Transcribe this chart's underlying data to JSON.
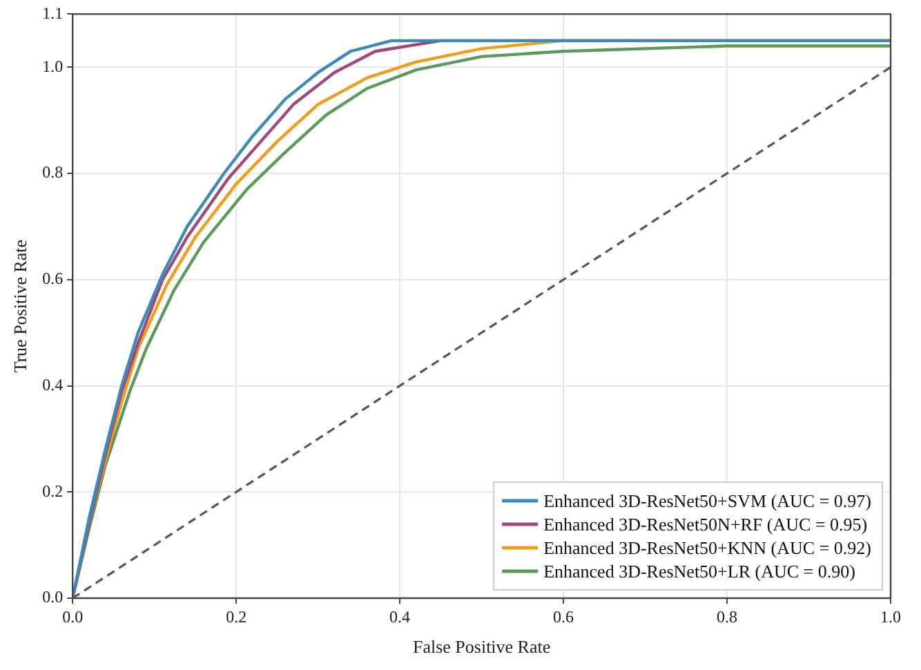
{
  "chart_data": {
    "type": "line",
    "xlabel": "False Positive Rate",
    "ylabel": "True Positive Rate",
    "xlim": [
      0,
      1
    ],
    "ylim": [
      0,
      1.1
    ],
    "xticks": [
      {
        "value": 0,
        "label": "0.0"
      },
      {
        "value": 0.2,
        "label": "0.2"
      },
      {
        "value": 0.4,
        "label": "0.4"
      },
      {
        "value": 0.6,
        "label": "0.6"
      },
      {
        "value": 0.8,
        "label": "0.8"
      },
      {
        "value": 1,
        "label": "1.0"
      }
    ],
    "yticks": [
      {
        "value": 0,
        "label": "0.0"
      },
      {
        "value": 0.2,
        "label": "0.2"
      },
      {
        "value": 0.4,
        "label": "0.4"
      },
      {
        "value": 0.6,
        "label": "0.6"
      },
      {
        "value": 0.8,
        "label": "0.8"
      },
      {
        "value": 1,
        "label": "1.0"
      },
      1.1
    ],
    "grid": true,
    "legend": "bottom right",
    "marker": "none",
    "series": [
      {
        "name": "Enhanced 3D-ResNet50+SVM (AUC = 0.97)",
        "color": "#3b8bba",
        "x": [
          0,
          0.02,
          0.04,
          0.06,
          0.08,
          0.11,
          0.14,
          0.185,
          0.22,
          0.26,
          0.3,
          0.34,
          0.39,
          1
        ],
        "values": [
          0,
          0.15,
          0.28,
          0.4,
          0.5,
          0.61,
          0.7,
          0.8,
          0.87,
          0.94,
          0.99,
          1.03,
          1.05,
          1.05
        ]
      },
      {
        "name": "Enhanced 3D-ResNet50N+RF (AUC = 0.95)",
        "color": "#a0487a",
        "x": [
          0,
          0.02,
          0.04,
          0.06,
          0.08,
          0.11,
          0.14,
          0.19,
          0.23,
          0.27,
          0.32,
          0.37,
          0.45,
          1
        ],
        "values": [
          0,
          0.14,
          0.27,
          0.39,
          0.48,
          0.6,
          0.68,
          0.79,
          0.86,
          0.93,
          0.99,
          1.03,
          1.05,
          1.05
        ]
      },
      {
        "name": "Enhanced 3D-ResNet50+KNN (AUC = 0.92)",
        "color": "#f39c1a",
        "x": [
          0,
          0.02,
          0.04,
          0.06,
          0.08,
          0.115,
          0.15,
          0.2,
          0.25,
          0.3,
          0.36,
          0.42,
          0.5,
          0.6,
          1
        ],
        "values": [
          0,
          0.14,
          0.26,
          0.37,
          0.47,
          0.59,
          0.68,
          0.78,
          0.86,
          0.93,
          0.98,
          1.01,
          1.035,
          1.05,
          1.05
        ]
      },
      {
        "name": "Enhanced 3D-ResNet50+LR (AUC = 0.90)",
        "color": "#5a9a5a",
        "x": [
          0,
          0.02,
          0.04,
          0.07,
          0.09,
          0.124,
          0.16,
          0.213,
          0.26,
          0.31,
          0.36,
          0.42,
          0.5,
          0.6,
          0.8,
          1
        ],
        "values": [
          0,
          0.13,
          0.25,
          0.39,
          0.47,
          0.58,
          0.67,
          0.77,
          0.84,
          0.91,
          0.96,
          0.995,
          1.02,
          1.03,
          1.04,
          1.04
        ]
      },
      {
        "color": "#555555",
        "line_style": "dashed",
        "x": [
          0,
          1
        ],
        "values": [
          0,
          1
        ]
      }
    ]
  }
}
